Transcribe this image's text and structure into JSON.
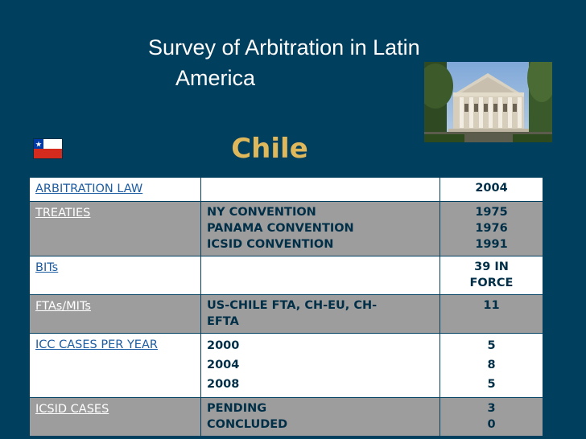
{
  "slide": {
    "title_line1": "Survey of Arbitration in Latin",
    "title_line2": "America",
    "country": "Chile"
  },
  "table": {
    "rows": [
      {
        "label": "ARBITRATION LAW",
        "middle": [],
        "values": [
          "2004"
        ]
      },
      {
        "label": "TREATIES",
        "middle": [
          "NY CONVENTION",
          "PANAMA CONVENTION",
          "ICSID CONVENTION"
        ],
        "values": [
          "1975",
          "1976",
          "1991"
        ]
      },
      {
        "label": "BITs",
        "middle": [],
        "values": [
          "39 IN",
          "FORCE"
        ]
      },
      {
        "label": "FTAs/MITs",
        "middle": [
          "US-CHILE FTA, CH-EU, CH-",
          "EFTA"
        ],
        "values": [
          "11"
        ]
      },
      {
        "label": "ICC CASES PER YEAR",
        "middle": [
          "2000",
          "2004",
          "2008"
        ],
        "values": [
          "5",
          "8",
          "5"
        ]
      },
      {
        "label": "ICSID CASES",
        "middle": [
          "PENDING",
          "CONCLUDED"
        ],
        "values": [
          "3",
          "0"
        ]
      }
    ]
  },
  "colors": {
    "background": "#003f5e",
    "title": "#ffffff",
    "country_heading": "#e0b85c",
    "row_light": "#ffffff",
    "row_dark": "#9d9d9d",
    "link_label": "#1d5ca1",
    "cell_text": "#002f47"
  },
  "icons": {
    "flag": "chile-flag-icon",
    "photo": "government-building-photo"
  }
}
